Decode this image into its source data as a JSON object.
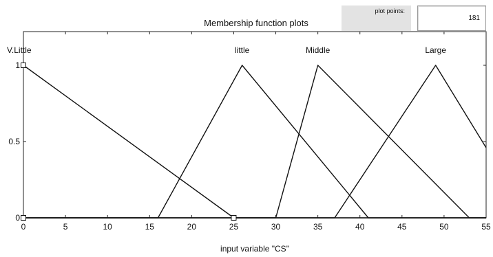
{
  "header": {
    "title": "Membership function plots",
    "plot_points_label": "plot points:",
    "plot_points_value": "181"
  },
  "chart_data": {
    "type": "line",
    "title": "",
    "xlabel": "input variable \"CS\"",
    "ylabel": "",
    "xlim": [
      0,
      55
    ],
    "ylim": [
      0,
      1
    ],
    "xticks": [
      0,
      5,
      10,
      15,
      20,
      25,
      30,
      35,
      40,
      45,
      50,
      55
    ],
    "yticks": [
      0,
      0.5,
      1
    ],
    "series": [
      {
        "name": "V.Little",
        "x": [
          0,
          25
        ],
        "y": [
          1,
          0
        ]
      },
      {
        "name": "little",
        "x": [
          16,
          26,
          41
        ],
        "y": [
          0,
          1,
          0
        ]
      },
      {
        "name": "Middle",
        "x": [
          30,
          35,
          53
        ],
        "y": [
          0,
          1,
          0
        ]
      },
      {
        "name": "Large",
        "x": [
          37,
          49,
          55
        ],
        "y": [
          0,
          1,
          0.46
        ]
      }
    ]
  }
}
